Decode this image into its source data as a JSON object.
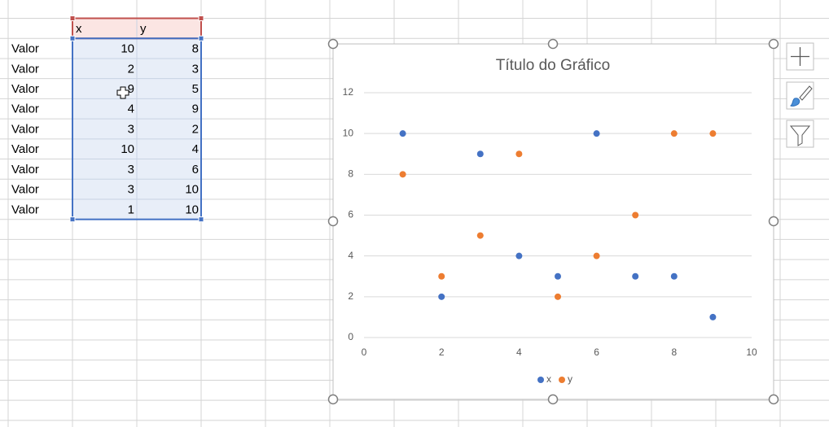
{
  "table": {
    "header": [
      "x",
      "y"
    ],
    "rows": [
      [
        "Valor",
        10,
        8
      ],
      [
        "Valor",
        2,
        3
      ],
      [
        "Valor",
        9,
        5
      ],
      [
        "Valor",
        4,
        9
      ],
      [
        "Valor",
        3,
        2
      ],
      [
        "Valor",
        10,
        4
      ],
      [
        "Valor",
        3,
        6
      ],
      [
        "Valor",
        3,
        10
      ],
      [
        "Valor",
        1,
        10
      ]
    ]
  },
  "chart_data": {
    "type": "scatter",
    "title": "Título do Gráfico",
    "x": [
      1,
      2,
      3,
      4,
      5,
      6,
      7,
      8,
      9
    ],
    "series": [
      {
        "name": "x",
        "color": "#4472c4",
        "values": [
          10,
          2,
          9,
          4,
          3,
          10,
          3,
          3,
          1
        ]
      },
      {
        "name": "y",
        "color": "#ed7d31",
        "values": [
          8,
          3,
          5,
          9,
          2,
          4,
          6,
          10,
          10
        ]
      }
    ],
    "xlim": [
      0,
      10
    ],
    "xticks": [
      0,
      2,
      4,
      6,
      8,
      10
    ],
    "ylim": [
      0,
      12
    ],
    "yticks": [
      0,
      2,
      4,
      6,
      8,
      10,
      12
    ],
    "grid": true,
    "legend": "bottom"
  }
}
